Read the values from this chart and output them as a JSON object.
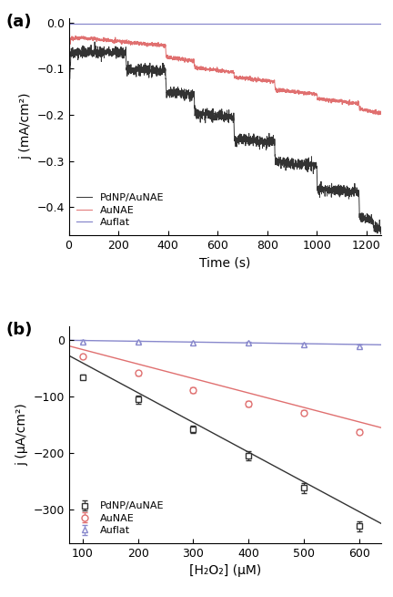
{
  "panel_a": {
    "xlabel": "Time (s)",
    "ylabel": "j (mA/cm²)",
    "xlim": [
      0,
      1260
    ],
    "ylim": [
      -0.46,
      0.01
    ],
    "yticks": [
      0.0,
      -0.1,
      -0.2,
      -0.3,
      -0.4
    ],
    "xticks": [
      0,
      200,
      400,
      600,
      800,
      1000,
      1200
    ],
    "legend_labels": [
      "PdNP/AuNAE",
      "AuNAE",
      "Auflat"
    ],
    "label": "(a)",
    "pdnp_color": "#333333",
    "aunae_color": "#E07070",
    "auflat_color": "#8888CC",
    "auflat_y": -0.002,
    "pdnp_noise": 0.006,
    "aunae_noise": 0.002,
    "pdnp_segments": [
      {
        "x": [
          0,
          8
        ],
        "y": [
          -0.18,
          -0.065
        ]
      },
      {
        "x": [
          8,
          230
        ],
        "y": [
          -0.065,
          -0.065
        ]
      },
      {
        "x": [
          230,
          233
        ],
        "y": [
          -0.065,
          -0.102
        ]
      },
      {
        "x": [
          233,
          390
        ],
        "y": [
          -0.102,
          -0.104
        ]
      },
      {
        "x": [
          390,
          393
        ],
        "y": [
          -0.104,
          -0.153
        ]
      },
      {
        "x": [
          393,
          505
        ],
        "y": [
          -0.153,
          -0.157
        ]
      },
      {
        "x": [
          505,
          508
        ],
        "y": [
          -0.157,
          -0.198
        ]
      },
      {
        "x": [
          508,
          665
        ],
        "y": [
          -0.198,
          -0.205
        ]
      },
      {
        "x": [
          665,
          668
        ],
        "y": [
          -0.205,
          -0.253
        ]
      },
      {
        "x": [
          668,
          830
        ],
        "y": [
          -0.253,
          -0.26
        ]
      },
      {
        "x": [
          830,
          833
        ],
        "y": [
          -0.26,
          -0.302
        ]
      },
      {
        "x": [
          833,
          1000
        ],
        "y": [
          -0.302,
          -0.31
        ]
      },
      {
        "x": [
          1000,
          1003
        ],
        "y": [
          -0.31,
          -0.36
        ]
      },
      {
        "x": [
          1003,
          1170
        ],
        "y": [
          -0.36,
          -0.368
        ]
      },
      {
        "x": [
          1170,
          1173
        ],
        "y": [
          -0.368,
          -0.42
        ]
      },
      {
        "x": [
          1173,
          1225
        ],
        "y": [
          -0.42,
          -0.427
        ]
      },
      {
        "x": [
          1225,
          1230
        ],
        "y": [
          -0.427,
          -0.445
        ]
      },
      {
        "x": [
          1230,
          1260
        ],
        "y": [
          -0.445,
          -0.445
        ]
      }
    ],
    "aunae_segments": [
      {
        "x": [
          0,
          8
        ],
        "y": [
          -0.06,
          -0.035
        ]
      },
      {
        "x": [
          8,
          50
        ],
        "y": [
          -0.035,
          -0.033
        ]
      },
      {
        "x": [
          50,
          390
        ],
        "y": [
          -0.033,
          -0.05
        ]
      },
      {
        "x": [
          390,
          393
        ],
        "y": [
          -0.05,
          -0.075
        ]
      },
      {
        "x": [
          393,
          505
        ],
        "y": [
          -0.075,
          -0.083
        ]
      },
      {
        "x": [
          505,
          508
        ],
        "y": [
          -0.083,
          -0.098
        ]
      },
      {
        "x": [
          508,
          665
        ],
        "y": [
          -0.098,
          -0.107
        ]
      },
      {
        "x": [
          665,
          668
        ],
        "y": [
          -0.107,
          -0.118
        ]
      },
      {
        "x": [
          668,
          830
        ],
        "y": [
          -0.118,
          -0.128
        ]
      },
      {
        "x": [
          830,
          833
        ],
        "y": [
          -0.128,
          -0.145
        ]
      },
      {
        "x": [
          833,
          1000
        ],
        "y": [
          -0.145,
          -0.155
        ]
      },
      {
        "x": [
          1000,
          1003
        ],
        "y": [
          -0.155,
          -0.165
        ]
      },
      {
        "x": [
          1003,
          1170
        ],
        "y": [
          -0.165,
          -0.175
        ]
      },
      {
        "x": [
          1170,
          1173
        ],
        "y": [
          -0.175,
          -0.187
        ]
      },
      {
        "x": [
          1173,
          1260
        ],
        "y": [
          -0.187,
          -0.197
        ]
      }
    ]
  },
  "panel_b": {
    "xlabel": "[H₂O₂] (μM)",
    "ylabel": "j (μA/cm²)",
    "xlim": [
      75,
      640
    ],
    "ylim": [
      -360,
      25
    ],
    "yticks": [
      0,
      -100,
      -200,
      -300
    ],
    "xticks": [
      100,
      200,
      300,
      400,
      500,
      600
    ],
    "label": "(b)",
    "pdnp_color": "#333333",
    "aunae_color": "#E07070",
    "auflat_color": "#8888CC",
    "pdnp_x": [
      100,
      200,
      300,
      400,
      500,
      600
    ],
    "pdnp_y": [
      -65,
      -105,
      -158,
      -205,
      -262,
      -330
    ],
    "pdnp_yerr": [
      4,
      7,
      7,
      8,
      9,
      9
    ],
    "pdnp_fit_x": [
      75,
      640
    ],
    "pdnp_fit_y": [
      -27,
      -325
    ],
    "aunae_x": [
      100,
      200,
      300,
      400,
      500,
      600
    ],
    "aunae_y": [
      -28,
      -58,
      -88,
      -112,
      -128,
      -162
    ],
    "aunae_yerr": [
      3,
      4,
      5,
      5,
      4,
      4
    ],
    "aunae_fit_x": [
      75,
      640
    ],
    "aunae_fit_y": [
      -10,
      -155
    ],
    "auflat_x": [
      100,
      200,
      300,
      400,
      500,
      600
    ],
    "auflat_y": [
      -2,
      -3,
      -5,
      -5,
      -8,
      -10
    ],
    "auflat_yerr": [
      2,
      2,
      2,
      2,
      2,
      2
    ],
    "auflat_fit_x": [
      75,
      640
    ],
    "auflat_fit_y": [
      0,
      -8
    ],
    "legend_labels": [
      "PdNP/AuNAE",
      "AuNAE",
      "Auflat"
    ]
  }
}
